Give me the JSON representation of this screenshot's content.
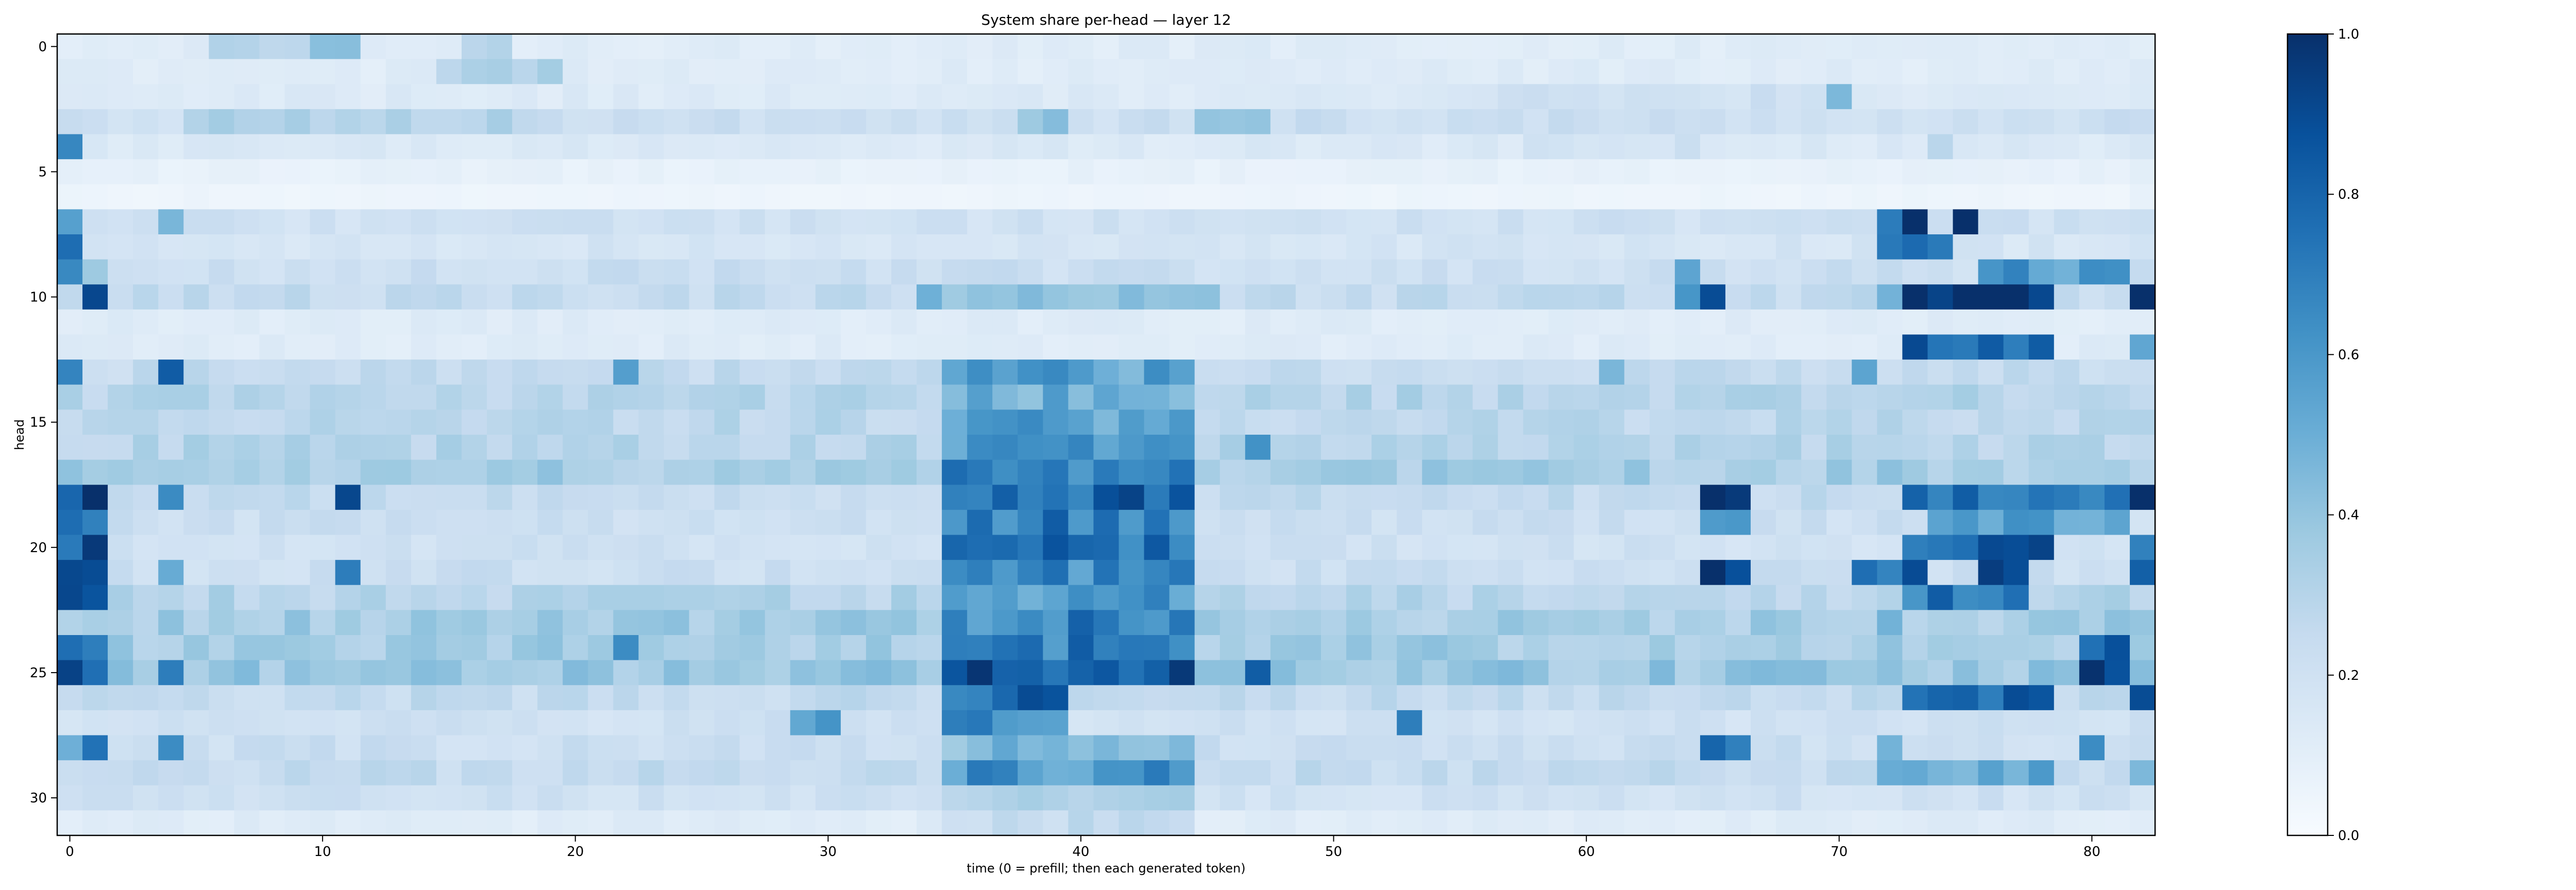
{
  "chart_data": {
    "type": "heatmap",
    "title": "System share per-head — layer 12",
    "xlabel": "time (0 = prefill; then each generated token)",
    "ylabel": "head",
    "x_range": [
      0,
      82
    ],
    "y_range": [
      0,
      31
    ],
    "x_ticks": [
      "0",
      "10",
      "20",
      "30",
      "40",
      "50",
      "60",
      "70",
      "80"
    ],
    "y_ticks": [
      "0",
      "5",
      "10",
      "15",
      "20",
      "25",
      "30"
    ],
    "colorbar": {
      "ticks": [
        "0.0",
        "0.2",
        "0.4",
        "0.6",
        "0.8",
        "1.0"
      ],
      "vmin": 0.0,
      "vmax": 1.0,
      "colormap": "Blues",
      "colors": [
        "#f7fbff",
        "#deebf7",
        "#c6dbef",
        "#9ecae1",
        "#6baed6",
        "#4292c6",
        "#2171b5",
        "#08519c",
        "#08306b"
      ]
    },
    "grid": false,
    "legend": "colorbar-right",
    "rows": [
      {
        "head": 0,
        "base": 0.12,
        "segments": [
          [
            6,
            12,
            0.28
          ],
          [
            10,
            12,
            0.45
          ],
          [
            16,
            18,
            0.3
          ]
        ]
      },
      {
        "head": 1,
        "base": 0.12,
        "segments": [
          [
            15,
            20,
            0.3
          ]
        ]
      },
      {
        "head": 2,
        "base": 0.13,
        "segments": [
          [
            70,
            71,
            0.55
          ],
          [
            55,
            70,
            0.2
          ]
        ]
      },
      {
        "head": 3,
        "base": 0.22,
        "segments": [
          [
            5,
            20,
            0.3
          ],
          [
            38,
            40,
            0.45
          ],
          [
            45,
            48,
            0.4
          ]
        ]
      },
      {
        "head": 4,
        "base": 0.14,
        "segments": [
          [
            0,
            1,
            0.65
          ],
          [
            58,
            65,
            0.2
          ],
          [
            74,
            75,
            0.35
          ]
        ]
      },
      {
        "head": 5,
        "base": 0.1,
        "segments": [
          [
            0,
            82,
            0.08
          ]
        ]
      },
      {
        "head": 6,
        "base": 0.08,
        "segments": [
          [
            0,
            82,
            0.05
          ]
        ]
      },
      {
        "head": 7,
        "base": 0.2,
        "segments": [
          [
            0,
            1,
            0.5
          ],
          [
            4,
            5,
            0.4
          ],
          [
            72,
            73,
            0.6
          ],
          [
            73,
            74,
            0.9
          ],
          [
            75,
            76,
            0.9
          ]
        ]
      },
      {
        "head": 8,
        "base": 0.17,
        "segments": [
          [
            0,
            1,
            0.65
          ],
          [
            72,
            74,
            0.7
          ],
          [
            74,
            75,
            0.65
          ]
        ]
      },
      {
        "head": 9,
        "base": 0.22,
        "segments": [
          [
            0,
            1,
            0.6
          ],
          [
            1,
            2,
            0.45
          ],
          [
            64,
            65,
            0.6
          ],
          [
            76,
            82,
            0.6
          ]
        ]
      },
      {
        "head": 10,
        "base": 0.25,
        "segments": [
          [
            1,
            2,
            0.8
          ],
          [
            34,
            46,
            0.45
          ],
          [
            64,
            65,
            0.7
          ],
          [
            65,
            66,
            0.85
          ],
          [
            72,
            73,
            0.55
          ],
          [
            73,
            79,
            0.95
          ],
          [
            82,
            83,
            0.95
          ]
        ]
      },
      {
        "head": 11,
        "base": 0.13,
        "segments": [
          [
            0,
            83,
            0.12
          ]
        ]
      },
      {
        "head": 12,
        "base": 0.12,
        "segments": [
          [
            73,
            74,
            0.95
          ],
          [
            74,
            78,
            0.75
          ],
          [
            78,
            79,
            0.9
          ],
          [
            82,
            83,
            0.65
          ]
        ]
      },
      {
        "head": 13,
        "base": 0.25,
        "segments": [
          [
            0,
            1,
            0.8
          ],
          [
            4,
            5,
            0.8
          ],
          [
            22,
            23,
            0.6
          ],
          [
            35,
            45,
            0.55
          ],
          [
            61,
            62,
            0.55
          ],
          [
            71,
            72,
            0.6
          ]
        ]
      },
      {
        "head": 14,
        "base": 0.3,
        "segments": [
          [
            35,
            45,
            0.5
          ]
        ]
      },
      {
        "head": 15,
        "base": 0.28,
        "segments": [
          [
            35,
            45,
            0.55
          ]
        ]
      },
      {
        "head": 16,
        "base": 0.3,
        "segments": [
          [
            35,
            45,
            0.6
          ],
          [
            47,
            48,
            0.6
          ]
        ]
      },
      {
        "head": 17,
        "base": 0.35,
        "segments": [
          [
            35,
            45,
            0.65
          ]
        ]
      },
      {
        "head": 18,
        "base": 0.25,
        "segments": [
          [
            0,
            2,
            0.9
          ],
          [
            4,
            5,
            0.75
          ],
          [
            11,
            12,
            0.8
          ],
          [
            35,
            45,
            0.8
          ],
          [
            65,
            67,
            0.9
          ],
          [
            73,
            74,
            0.95
          ],
          [
            74,
            82,
            0.75
          ],
          [
            82,
            83,
            0.9
          ]
        ]
      },
      {
        "head": 19,
        "base": 0.22,
        "segments": [
          [
            0,
            2,
            0.7
          ],
          [
            35,
            45,
            0.7
          ],
          [
            65,
            67,
            0.6
          ],
          [
            74,
            82,
            0.55
          ]
        ]
      },
      {
        "head": 20,
        "base": 0.2,
        "segments": [
          [
            0,
            2,
            0.85
          ],
          [
            35,
            45,
            0.75
          ],
          [
            73,
            79,
            0.8
          ],
          [
            82,
            83,
            0.85
          ]
        ]
      },
      {
        "head": 21,
        "base": 0.22,
        "segments": [
          [
            0,
            2,
            0.95
          ],
          [
            4,
            5,
            0.6
          ],
          [
            11,
            12,
            0.65
          ],
          [
            35,
            45,
            0.65
          ],
          [
            65,
            67,
            0.9
          ],
          [
            71,
            73,
            0.7
          ],
          [
            73,
            74,
            0.9
          ],
          [
            76,
            78,
            0.85
          ],
          [
            82,
            83,
            0.9
          ]
        ]
      },
      {
        "head": 22,
        "base": 0.3,
        "segments": [
          [
            0,
            2,
            0.8
          ],
          [
            35,
            45,
            0.6
          ],
          [
            73,
            78,
            0.75
          ]
        ]
      },
      {
        "head": 23,
        "base": 0.35,
        "segments": [
          [
            35,
            45,
            0.65
          ],
          [
            40,
            41,
            0.85
          ],
          [
            72,
            73,
            0.6
          ]
        ]
      },
      {
        "head": 24,
        "base": 0.35,
        "segments": [
          [
            0,
            2,
            0.75
          ],
          [
            22,
            23,
            0.7
          ],
          [
            35,
            45,
            0.7
          ],
          [
            80,
            82,
            0.85
          ]
        ]
      },
      {
        "head": 25,
        "base": 0.38,
        "segments": [
          [
            0,
            2,
            0.9
          ],
          [
            4,
            5,
            0.75
          ],
          [
            35,
            45,
            0.85
          ],
          [
            47,
            48,
            0.7
          ],
          [
            80,
            82,
            0.95
          ]
        ]
      },
      {
        "head": 26,
        "base": 0.25,
        "segments": [
          [
            35,
            40,
            0.8
          ],
          [
            73,
            79,
            0.85
          ],
          [
            82,
            83,
            0.85
          ]
        ]
      },
      {
        "head": 27,
        "base": 0.2,
        "segments": [
          [
            29,
            31,
            0.55
          ],
          [
            35,
            40,
            0.65
          ],
          [
            53,
            54,
            0.6
          ]
        ]
      },
      {
        "head": 28,
        "base": 0.22,
        "segments": [
          [
            0,
            1,
            0.6
          ],
          [
            1,
            2,
            0.8
          ],
          [
            4,
            5,
            0.65
          ],
          [
            35,
            45,
            0.45
          ],
          [
            65,
            67,
            0.7
          ],
          [
            72,
            73,
            0.5
          ],
          [
            80,
            81,
            0.75
          ]
        ]
      },
      {
        "head": 29,
        "base": 0.25,
        "segments": [
          [
            35,
            45,
            0.6
          ],
          [
            72,
            79,
            0.55
          ],
          [
            82,
            83,
            0.55
          ]
        ]
      },
      {
        "head": 30,
        "base": 0.2,
        "segments": [
          [
            35,
            45,
            0.35
          ]
        ]
      },
      {
        "head": 31,
        "base": 0.12,
        "segments": [
          [
            35,
            45,
            0.25
          ]
        ]
      }
    ]
  }
}
